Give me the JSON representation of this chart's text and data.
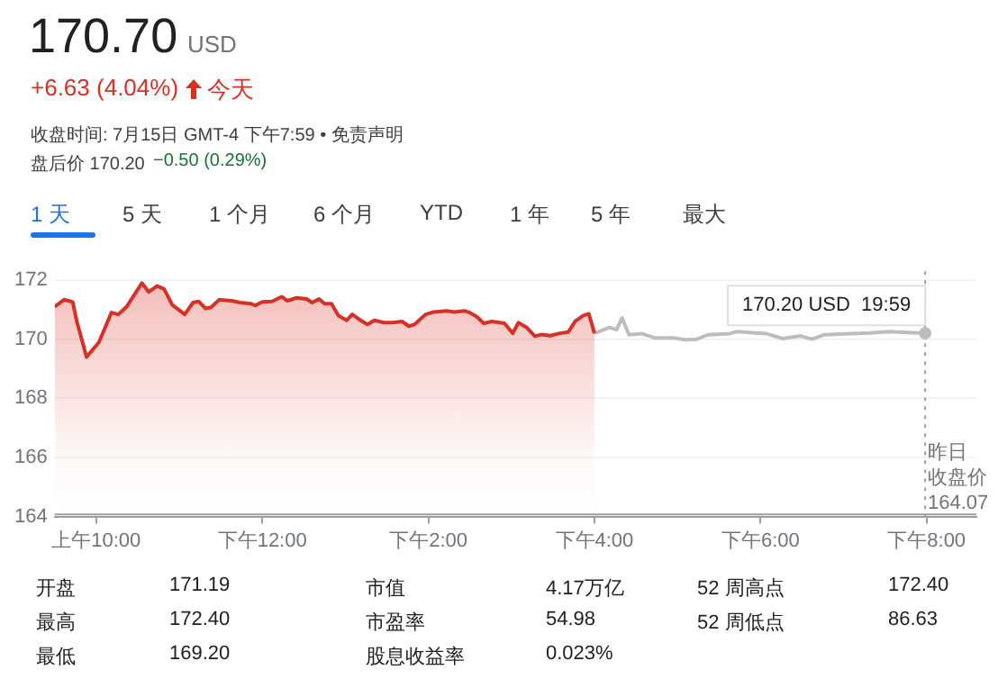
{
  "chart_data": {
    "type": "area",
    "title": "170.70",
    "subtitle": "USD",
    "annotations": [
      "+6.63 (4.04%)",
      "今天",
      "收盘时间: 7月15日 GMT-4 下午7:59 • 免责声明",
      "盘后价 170.20",
      "−0.50 (0.29%)",
      "1 天",
      "5 天",
      "1 个月",
      "6 个月",
      "YTD",
      "1 年",
      "5 年",
      "最大",
      "开盘",
      "171.19",
      "市值",
      "4.17万亿",
      "52 周高点",
      "172.40",
      "最高",
      "172.40",
      "市盈率",
      "54.98",
      "52 周低点",
      "86.63",
      "最低",
      "169.20",
      "股息收益率",
      "0.023%",
      {
        "text": "170.20 USD  19:59",
        "x": "--07-15T19:59",
        "y": 170.2
      }
    ],
    "series": [
      {
        "color": "#d93025",
        "x": [
          "--07-15T09:30",
          "--07-15T09:37",
          "--07-15T09:43",
          "--07-15T09:46",
          "--07-15T09:53",
          "--07-15T10:02",
          "--07-15T10:11",
          "--07-15T10:16",
          "--07-15T10:22",
          "--07-15T10:33",
          "--07-15T10:38",
          "--07-15T10:44",
          "--07-15T10:49",
          "--07-15T10:55",
          "--07-15T11:04",
          "--07-15T11:10",
          "--07-15T11:14",
          "--07-15T11:19",
          "--07-15T11:23",
          "--07-15T11:29",
          "--07-15T11:38",
          "--07-15T11:44",
          "--07-15T11:52",
          "--07-15T11:55",
          "--07-15T12:00",
          "--07-15T12:07",
          "--07-15T12:14",
          "--07-15T12:18",
          "--07-15T12:25",
          "--07-15T12:32",
          "--07-15T12:36",
          "--07-15T12:41",
          "--07-15T12:45",
          "--07-15T12:50",
          "--07-15T12:55",
          "--07-15T13:01",
          "--07-15T13:05",
          "--07-15T13:11",
          "--07-15T13:16",
          "--07-15T13:21",
          "--07-15T13:28",
          "--07-15T13:34",
          "--07-15T13:41",
          "--07-15T13:46",
          "--07-15T13:50",
          "--07-15T13:58",
          "--07-15T14:04",
          "--07-15T14:13",
          "--07-15T14:19",
          "--07-15T14:26",
          "--07-15T14:30",
          "--07-15T14:35",
          "--07-15T14:40",
          "--07-15T14:46",
          "--07-15T14:55",
          "--07-15T15:01",
          "--07-15T15:05",
          "--07-15T15:11",
          "--07-15T15:17",
          "--07-15T15:22",
          "--07-15T15:28",
          "--07-15T15:35",
          "--07-15T15:41",
          "--07-15T15:46",
          "--07-15T15:52",
          "--07-15T15:56",
          "--07-15T16:00"
        ],
        "values": [
          171.1,
          171.34,
          171.26,
          170.6,
          169.4,
          169.9,
          170.9,
          170.84,
          171.1,
          171.9,
          171.6,
          171.8,
          171.7,
          171.16,
          170.84,
          171.24,
          171.28,
          171.04,
          171.08,
          171.34,
          171.3,
          171.24,
          171.2,
          171.14,
          171.26,
          171.28,
          171.44,
          171.3,
          171.4,
          171.36,
          171.24,
          171.36,
          171.2,
          171.2,
          170.8,
          170.64,
          170.84,
          170.64,
          170.5,
          170.64,
          170.56,
          170.56,
          170.6,
          170.44,
          170.5,
          170.84,
          170.92,
          170.96,
          170.92,
          170.96,
          170.9,
          170.76,
          170.54,
          170.6,
          170.54,
          170.2,
          170.56,
          170.4,
          170.1,
          170.16,
          170.12,
          170.2,
          170.24,
          170.6,
          170.8,
          170.86,
          170.2
        ]
      },
      {
        "type": "line",
        "color": "#bdbdbd",
        "x": [
          "--07-15T16:00",
          "--07-15T16:11",
          "--07-15T16:16",
          "--07-15T16:20",
          "--07-15T16:25",
          "--07-15T16:34",
          "--07-15T16:44",
          "--07-15T16:58",
          "--07-15T17:05",
          "--07-15T17:14",
          "--07-15T17:22",
          "--07-15T17:38",
          "--07-15T17:43",
          "--07-15T18:04",
          "--07-15T18:16",
          "--07-15T18:29",
          "--07-15T18:37",
          "--07-15T18:46",
          "--07-15T19:05",
          "--07-15T19:19",
          "--07-15T19:33",
          "--07-15T19:59"
        ],
        "values": [
          170.2,
          170.4,
          170.32,
          170.72,
          170.15,
          170.19,
          170.04,
          170.04,
          169.98,
          170.0,
          170.15,
          170.19,
          170.26,
          170.19,
          170.02,
          170.11,
          170.0,
          170.15,
          170.19,
          170.21,
          170.26,
          170.2
        ]
      }
    ],
    "xlim": [
      "--07-15T09:30",
      "--07-15T20:36"
    ],
    "ylim": [
      164,
      172.3
    ],
    "xticks": [
      {
        "value": "--07-15T10:00",
        "label": "上午10:00"
      },
      {
        "value": "--07-15T12:00",
        "label": "下午12:00"
      },
      {
        "value": "--07-15T14:00",
        "label": "下午2:00"
      },
      {
        "value": "--07-15T16:00",
        "label": "下午4:00"
      },
      {
        "value": "--07-15T18:00",
        "label": "下午6:00"
      },
      {
        "value": "--07-15T20:00",
        "label": "下午8:00"
      }
    ],
    "yticks": [
      164,
      166,
      168,
      170,
      172
    ],
    "ref_lines": [
      {
        "axis": "y",
        "value": 164.07,
        "label": "昨日收盘价164.07",
        "color": "#9e9e9e"
      },
      {
        "axis": "x",
        "value": "--07-15T19:59",
        "color": "#9e9e9e",
        "line_style": "dotted"
      }
    ],
    "grid": "y",
    "legend": false
  }
}
